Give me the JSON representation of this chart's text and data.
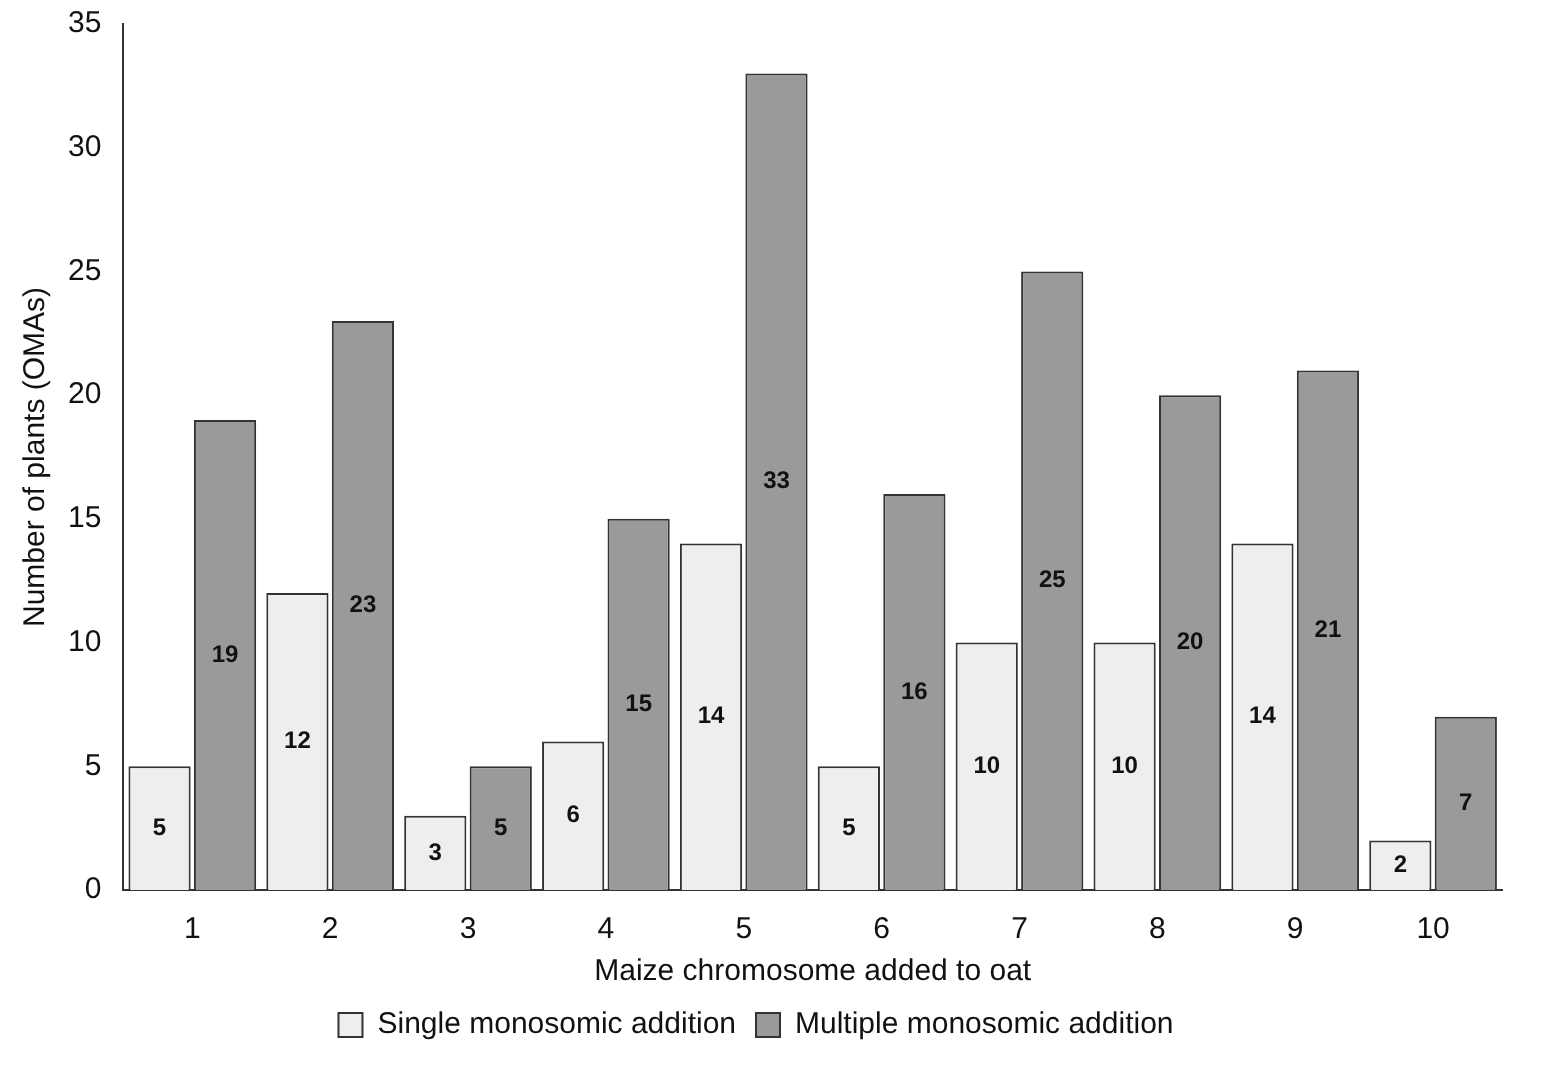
{
  "chart_data": {
    "type": "bar",
    "xlabel": "Maize chromosome added to oat",
    "ylabel": "Number of plants (OMAs)",
    "categories": [
      "1",
      "2",
      "3",
      "4",
      "5",
      "6",
      "7",
      "8",
      "9",
      "10"
    ],
    "series": [
      {
        "name": "Single monosomic addition",
        "color": "#eeeeee",
        "values": [
          5,
          12,
          3,
          6,
          14,
          5,
          10,
          10,
          14,
          2
        ]
      },
      {
        "name": "Multiple monosomic addition",
        "color": "#9a9a9a",
        "values": [
          19,
          23,
          5,
          15,
          33,
          16,
          25,
          20,
          21,
          7
        ]
      }
    ],
    "ylim": [
      0,
      35
    ],
    "yticks": [
      0,
      5,
      10,
      15,
      20,
      25,
      30,
      35
    ],
    "grid": false,
    "legend": "bottom",
    "data_labels": true
  }
}
